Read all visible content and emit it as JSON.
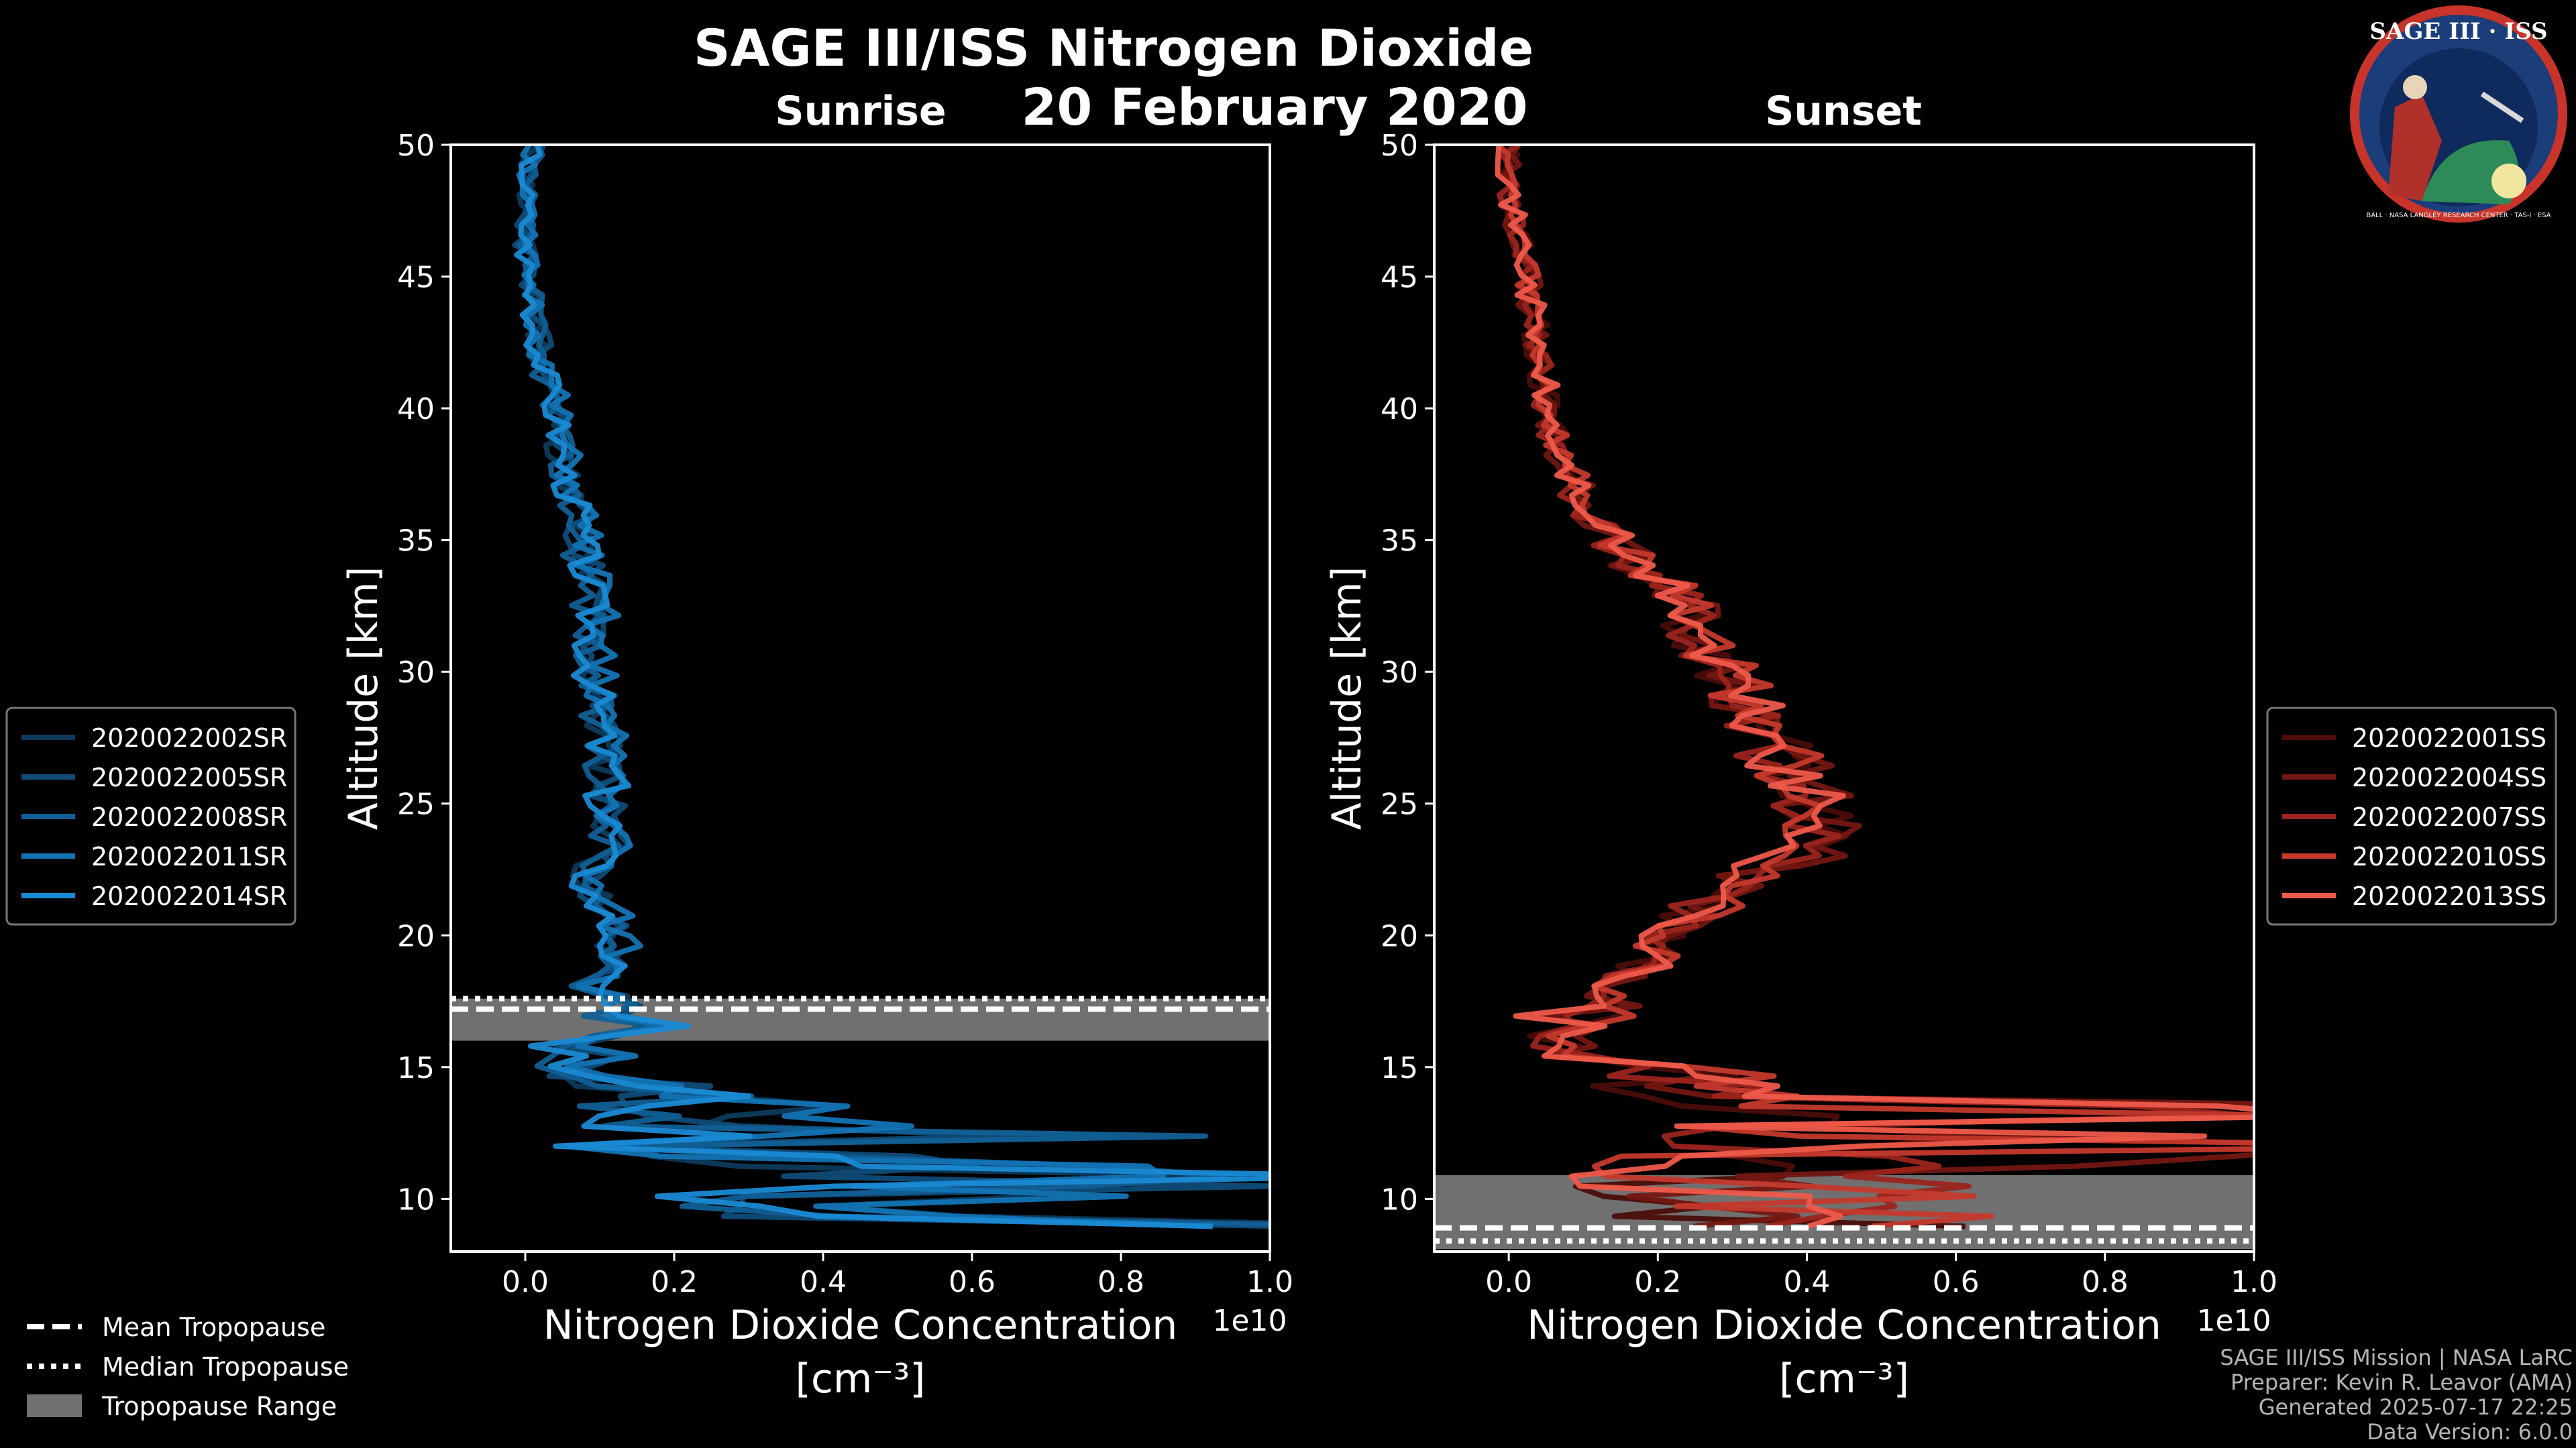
{
  "title": "SAGE III/ISS Nitrogen Dioxide",
  "date": "20 February 2020",
  "logo": {
    "text": "SAGE III · ISS",
    "ring_text": "BALL · NASA LANGLEY RESEARCH CENTER · TAS-I · ESA"
  },
  "footer": {
    "line1": "SAGE III/ISS Mission | NASA LaRC",
    "line2": "Preparer: Kevin R. Leavor (AMA)",
    "line3": "Generated 2025-07-17 22:25",
    "line4": "Data Version: 6.0.0"
  },
  "tropopause_legend": {
    "mean": "Mean Tropopause",
    "median": "Median Tropopause",
    "range": "Tropopause Range"
  },
  "chart_data": [
    {
      "type": "line",
      "panel": "Sunrise",
      "title": "Sunrise",
      "xlabel": "Nitrogen Dioxide Concentration",
      "xunit": "[cm⁻³]",
      "x_offset": "1e10",
      "ylabel": "Altitude [km]",
      "xlim": [
        -0.1,
        1.0
      ],
      "ylim": [
        8,
        50
      ],
      "xticks": [
        "0.0",
        "0.2",
        "0.4",
        "0.6",
        "0.8",
        "1.0"
      ],
      "yticks": [
        "10",
        "15",
        "20",
        "25",
        "30",
        "35",
        "40",
        "45",
        "50"
      ],
      "tropopause": {
        "mean": 17.2,
        "median": 17.6,
        "range": [
          16.0,
          17.6
        ]
      },
      "series": [
        {
          "name": "2020022002SR",
          "color": "#0d3a5c",
          "seed": 11,
          "scale": 1.0
        },
        {
          "name": "2020022005SR",
          "color": "#0f4c78",
          "seed": 23,
          "scale": 1.05
        },
        {
          "name": "2020022008SR",
          "color": "#115f95",
          "seed": 37,
          "scale": 0.95
        },
        {
          "name": "2020022011SR",
          "color": "#1373b4",
          "seed": 51,
          "scale": 1.1
        },
        {
          "name": "2020022014SR",
          "color": "#1a8ad4",
          "seed": 67,
          "scale": 1.0
        }
      ],
      "profile": [
        [
          8.7,
          0.9
        ],
        [
          9.0,
          1.0
        ],
        [
          9.3,
          0.6
        ],
        [
          9.6,
          0.25
        ],
        [
          10.0,
          0.7
        ],
        [
          10.5,
          0.9
        ],
        [
          11.0,
          0.95
        ],
        [
          11.5,
          0.45
        ],
        [
          12.0,
          0.2
        ],
        [
          12.3,
          1.0
        ],
        [
          12.7,
          0.5
        ],
        [
          13.0,
          0.25
        ],
        [
          13.5,
          0.35
        ],
        [
          14.0,
          0.3
        ],
        [
          14.5,
          0.1
        ],
        [
          15.0,
          0.05
        ],
        [
          15.5,
          0.12
        ],
        [
          16.0,
          0.05
        ],
        [
          16.5,
          0.2
        ],
        [
          17.0,
          0.1
        ],
        [
          17.5,
          0.14
        ],
        [
          18.0,
          0.08
        ],
        [
          19.0,
          0.12
        ],
        [
          20.0,
          0.12
        ],
        [
          21.0,
          0.1
        ],
        [
          22.0,
          0.08
        ],
        [
          23.0,
          0.1
        ],
        [
          24.0,
          0.12
        ],
        [
          25.0,
          0.1
        ],
        [
          26.0,
          0.12
        ],
        [
          27.0,
          0.1
        ],
        [
          28.0,
          0.1
        ],
        [
          30.0,
          0.09
        ],
        [
          32.0,
          0.09
        ],
        [
          34.0,
          0.08
        ],
        [
          36.0,
          0.07
        ],
        [
          38.0,
          0.05
        ],
        [
          40.0,
          0.04
        ],
        [
          42.0,
          0.02
        ],
        [
          44.0,
          0.01
        ],
        [
          46.0,
          0.0
        ],
        [
          48.0,
          0.0
        ],
        [
          50.0,
          0.01
        ]
      ]
    },
    {
      "type": "line",
      "panel": "Sunset",
      "title": "Sunset",
      "xlabel": "Nitrogen Dioxide Concentration",
      "xunit": "[cm⁻³]",
      "x_offset": "1e10",
      "ylabel": "Altitude [km]",
      "xlim": [
        -0.1,
        1.0
      ],
      "ylim": [
        8,
        50
      ],
      "xticks": [
        "0.0",
        "0.2",
        "0.4",
        "0.6",
        "0.8",
        "1.0"
      ],
      "yticks": [
        "10",
        "15",
        "20",
        "25",
        "30",
        "35",
        "40",
        "45",
        "50"
      ],
      "tropopause": {
        "mean": 8.9,
        "median": 8.4,
        "range": [
          8.1,
          10.9
        ]
      },
      "series": [
        {
          "name": "2020022001SS",
          "color": "#4a0d0a",
          "seed": 13,
          "scale": 1.0
        },
        {
          "name": "2020022004SS",
          "color": "#731712",
          "seed": 29,
          "scale": 1.03
        },
        {
          "name": "2020022007SS",
          "color": "#9a241c",
          "seed": 41,
          "scale": 0.97
        },
        {
          "name": "2020022010SS",
          "color": "#c4392c",
          "seed": 59,
          "scale": 1.05
        },
        {
          "name": "2020022013SS",
          "color": "#ee5a4a",
          "seed": 71,
          "scale": 1.0
        }
      ],
      "profile": [
        [
          11.0,
          0.5
        ],
        [
          11.5,
          0.8
        ],
        [
          12.0,
          1.0
        ],
        [
          12.5,
          0.9
        ],
        [
          13.0,
          1.0
        ],
        [
          13.5,
          1.0
        ],
        [
          14.0,
          0.4
        ],
        [
          14.5,
          0.3
        ],
        [
          15.0,
          0.2
        ],
        [
          15.5,
          0.1
        ],
        [
          16.0,
          0.08
        ],
        [
          16.5,
          0.1
        ],
        [
          17.0,
          0.15
        ],
        [
          17.5,
          0.14
        ],
        [
          18.0,
          0.1
        ],
        [
          19.0,
          0.2
        ],
        [
          20.0,
          0.2
        ],
        [
          21.0,
          0.25
        ],
        [
          22.0,
          0.3
        ],
        [
          23.0,
          0.38
        ],
        [
          24.0,
          0.42
        ],
        [
          25.0,
          0.4
        ],
        [
          26.0,
          0.37
        ],
        [
          27.0,
          0.36
        ],
        [
          28.0,
          0.34
        ],
        [
          29.0,
          0.31
        ],
        [
          30.0,
          0.29
        ],
        [
          31.0,
          0.26
        ],
        [
          32.0,
          0.25
        ],
        [
          33.0,
          0.22
        ],
        [
          34.0,
          0.17
        ],
        [
          35.0,
          0.14
        ],
        [
          36.0,
          0.11
        ],
        [
          37.0,
          0.09
        ],
        [
          38.0,
          0.07
        ],
        [
          39.0,
          0.06
        ],
        [
          40.0,
          0.05
        ],
        [
          42.0,
          0.04
        ],
        [
          44.0,
          0.03
        ],
        [
          46.0,
          0.02
        ],
        [
          48.0,
          0.0
        ],
        [
          50.0,
          0.0
        ]
      ]
    }
  ]
}
